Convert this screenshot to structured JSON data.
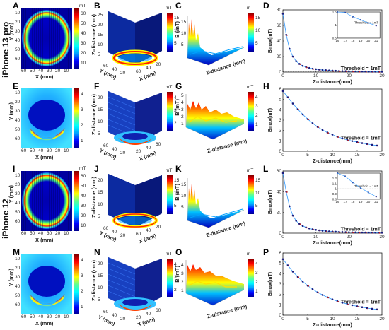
{
  "rows": [
    {
      "device": "iPhone 13 pro",
      "panels": [
        "A",
        "B",
        "C",
        "D"
      ]
    },
    {
      "device": "",
      "panels": [
        "E",
        "F",
        "G",
        "H"
      ]
    },
    {
      "device": "iPhone 12",
      "panels": [
        "I",
        "J",
        "K",
        "L"
      ]
    },
    {
      "device": "",
      "panels": [
        "M",
        "N",
        "O",
        "P"
      ]
    }
  ],
  "labels": {
    "x_mm": "X (mm)",
    "y_mm": "Y (mm)",
    "z_distance_mm": "Z-distance (mm)",
    "b_mt": "B (mT)",
    "unit_mt": "mT",
    "bmax": "Bmax(mT)",
    "zdist_plot": "Z-distance(mm)",
    "threshold": "Threshold = 1mT"
  },
  "heatmaps": {
    "A": {
      "colorbar_ticks": [
        "60",
        "50",
        "40",
        "30",
        "20",
        "10"
      ],
      "y_ticks": [
        "10",
        "20",
        "30",
        "40",
        "50",
        "60"
      ],
      "x_ticks": [
        "60",
        "50",
        "40",
        "30",
        "20",
        "10"
      ]
    },
    "E": {
      "colorbar_ticks": [
        "4",
        "3",
        "2",
        "1"
      ],
      "y_ticks": [
        "10",
        "20",
        "30",
        "40",
        "50",
        "60"
      ],
      "x_ticks": [
        "60",
        "50",
        "40",
        "30",
        "20",
        "10"
      ]
    },
    "I": {
      "colorbar_ticks": [
        "60",
        "50",
        "40",
        "30",
        "20",
        "10"
      ],
      "y_ticks": [
        "10",
        "20",
        "30",
        "40",
        "50",
        "60"
      ],
      "x_ticks": [
        "60",
        "50",
        "40",
        "30",
        "20",
        "10"
      ]
    },
    "M": {
      "colorbar_ticks": [
        "4",
        "3",
        "2",
        "1"
      ],
      "y_ticks": [
        "10",
        "20",
        "30",
        "40",
        "50",
        "60"
      ],
      "x_ticks": [
        "60",
        "50",
        "40",
        "30",
        "20",
        "10"
      ]
    }
  },
  "stack3d": {
    "B": {
      "z_ticks": [
        "25",
        "20",
        "15",
        "10",
        "5"
      ],
      "cb": [
        "15",
        "10",
        "5"
      ],
      "ax1": [
        "60",
        "40",
        "20"
      ],
      "ax2": [
        "60",
        "40",
        "20"
      ]
    },
    "F": {
      "z_ticks": [
        "20",
        "15",
        "10",
        "5"
      ],
      "cb": [
        "4",
        "3",
        "2"
      ],
      "ax1": [
        "60",
        "40",
        "20"
      ],
      "ax2": [
        "20",
        "40",
        "60"
      ]
    },
    "J": {
      "z_ticks": [
        "20",
        "15",
        "10",
        "5"
      ],
      "cb": [
        "15",
        "10",
        "5"
      ],
      "ax1": [
        "60",
        "40",
        "20"
      ],
      "ax2": [
        "60",
        "40",
        "20"
      ]
    },
    "N": {
      "z_ticks": [
        "20",
        "15",
        "10",
        "5"
      ],
      "cb": [
        "4",
        "3",
        "2"
      ],
      "ax1": [
        "60",
        "40",
        "20"
      ],
      "ax2": [
        "20",
        "40",
        "60"
      ]
    }
  },
  "surface3d": {
    "C": {
      "cb": [
        "15",
        "10",
        "5"
      ],
      "z_ticks": [
        "15",
        "10",
        "5"
      ]
    },
    "G": {
      "cb": [
        "4",
        "3",
        "2",
        "1"
      ],
      "z_ticks": [
        "5",
        "4",
        "3",
        "2",
        "1"
      ]
    },
    "K": {
      "cb": [
        "15",
        "10",
        "5"
      ],
      "z_ticks": [
        "15",
        "10",
        "5"
      ]
    },
    "O": {
      "cb": [
        "4",
        "3",
        "2",
        "1"
      ],
      "z_ticks": [
        "4",
        "3",
        "2",
        "1"
      ]
    }
  },
  "chart_data": [
    {
      "panel": "D",
      "type": "scatter",
      "xlabel": "Z-distance(mm)",
      "ylabel": "Bmax(mT)",
      "xlim": [
        0,
        30
      ],
      "ylim": [
        0,
        80
      ],
      "x_ticks": [
        0,
        10,
        20,
        30
      ],
      "y_ticks": [
        0,
        20,
        40,
        60,
        80
      ],
      "threshold": 1,
      "x": [
        0,
        1,
        2,
        3,
        4,
        5,
        6,
        7,
        8,
        9,
        10,
        11,
        12,
        13,
        14,
        15,
        16,
        17,
        18,
        19,
        20,
        21,
        22,
        23,
        24,
        25,
        26,
        27,
        28,
        29,
        30
      ],
      "y": [
        75,
        48,
        30,
        20,
        14,
        10.5,
        8,
        6.5,
        5.3,
        4.4,
        3.7,
        3.2,
        2.7,
        2.4,
        2.1,
        1.85,
        1.65,
        1.48,
        1.32,
        1.2,
        1.08,
        0.98,
        0.9,
        0.82,
        0.76,
        0.7,
        0.65,
        0.6,
        0.56,
        0.52,
        0.49
      ],
      "inset": {
        "xlim": [
          16,
          21.5
        ],
        "ylim": [
          0.5,
          1.5
        ],
        "x_ticks": [
          16,
          17,
          18,
          19,
          20,
          21
        ],
        "y_ticks": [
          0.5,
          1,
          1.5
        ]
      }
    },
    {
      "panel": "H",
      "type": "scatter",
      "xlabel": "Z-distance(mm)",
      "ylabel": "Bmax(mT)",
      "xlim": [
        0,
        20
      ],
      "ylim": [
        0,
        6
      ],
      "x_ticks": [
        0,
        5,
        10,
        15,
        20
      ],
      "y_ticks": [
        0,
        1,
        2,
        3,
        4,
        5,
        6
      ],
      "threshold": 1,
      "x": [
        0,
        1,
        2,
        3,
        4,
        5,
        6,
        7,
        8,
        9,
        10,
        11,
        12,
        13,
        14,
        15,
        16,
        17,
        18,
        19
      ],
      "y": [
        5.8,
        5.2,
        4.6,
        4.05,
        3.55,
        3.1,
        2.7,
        2.35,
        2.05,
        1.8,
        1.6,
        1.4,
        1.25,
        1.1,
        0.98,
        0.88,
        0.78,
        0.7,
        0.62,
        0.55
      ]
    },
    {
      "panel": "L",
      "type": "scatter",
      "xlabel": "Z-distance(mm)",
      "ylabel": "Bmax(mT)",
      "xlim": [
        0,
        30
      ],
      "ylim": [
        0,
        60
      ],
      "x_ticks": [
        0,
        10,
        20,
        30
      ],
      "y_ticks": [
        0,
        20,
        40,
        60
      ],
      "threshold": 1,
      "x": [
        0,
        1,
        2,
        3,
        4,
        5,
        6,
        7,
        8,
        9,
        10,
        11,
        12,
        13,
        14,
        15,
        16,
        17,
        18,
        19,
        20,
        21,
        22,
        23,
        24,
        25,
        26,
        27,
        28,
        29,
        30
      ],
      "y": [
        58,
        40,
        26,
        17,
        12,
        9,
        7,
        5.6,
        4.6,
        3.8,
        3.2,
        2.7,
        2.3,
        2,
        1.75,
        1.55,
        1.38,
        1.24,
        1.12,
        1.02,
        0.93,
        0.85,
        0.78,
        0.72,
        0.66,
        0.61,
        0.57,
        0.53,
        0.5,
        0.47,
        0.44
      ],
      "inset": {
        "xlim": [
          16,
          21.5
        ],
        "ylim": [
          0.8,
          1.3
        ],
        "x_ticks": [
          16,
          17,
          18,
          19,
          20,
          21
        ],
        "y_ticks": [
          0.8,
          0.9,
          1,
          1.1,
          1.2
        ]
      }
    },
    {
      "panel": "P",
      "type": "scatter",
      "xlabel": "Z-distance(mm)",
      "ylabel": "Bmax(mT)",
      "xlim": [
        0,
        20
      ],
      "ylim": [
        0,
        6
      ],
      "x_ticks": [
        0,
        5,
        10,
        15,
        20
      ],
      "y_ticks": [
        0,
        1,
        2,
        3,
        4,
        5,
        6
      ],
      "threshold": 1,
      "x": [
        0,
        1,
        2,
        3,
        4,
        5,
        6,
        7,
        8,
        9,
        10,
        11,
        12,
        13,
        14,
        15,
        16,
        17,
        18,
        19
      ],
      "y": [
        5.4,
        4.8,
        4.2,
        3.7,
        3.25,
        2.85,
        2.5,
        2.2,
        1.95,
        1.72,
        1.52,
        1.35,
        1.2,
        1.07,
        0.96,
        0.86,
        0.77,
        0.69,
        0.62,
        0.56
      ]
    }
  ]
}
